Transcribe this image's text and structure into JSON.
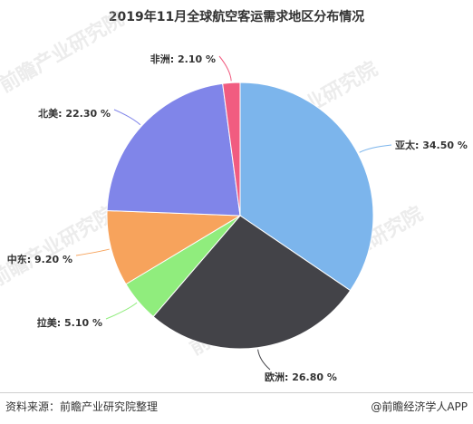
{
  "title": "2019年11月全球航空客运需求地区分布情况",
  "chart_data": {
    "type": "pie",
    "title": "2019年11月全球航空客运需求地区分布情况",
    "slices": [
      {
        "label": "亚太",
        "value": 34.5,
        "value_text": "34.50 %",
        "color": "#7cb5ec"
      },
      {
        "label": "欧洲",
        "value": 26.8,
        "value_text": "26.80 %",
        "color": "#434348"
      },
      {
        "label": "拉美",
        "value": 5.1,
        "value_text": "5.10 %",
        "color": "#90ed7d"
      },
      {
        "label": "中东",
        "value": 9.2,
        "value_text": "9.20 %",
        "color": "#f7a35c"
      },
      {
        "label": "北美",
        "value": 22.3,
        "value_text": "22.30 %",
        "color": "#8085e9"
      },
      {
        "label": "非洲",
        "value": 2.1,
        "value_text": "2.10 %",
        "color": "#f15c80"
      }
    ],
    "start_angle_deg": 0,
    "direction": "clockwise"
  },
  "footer": {
    "source": "资料来源：前瞻产业研究院整理",
    "brand": "@前瞻经济学人APP"
  },
  "watermark": "前瞻产业研究院"
}
